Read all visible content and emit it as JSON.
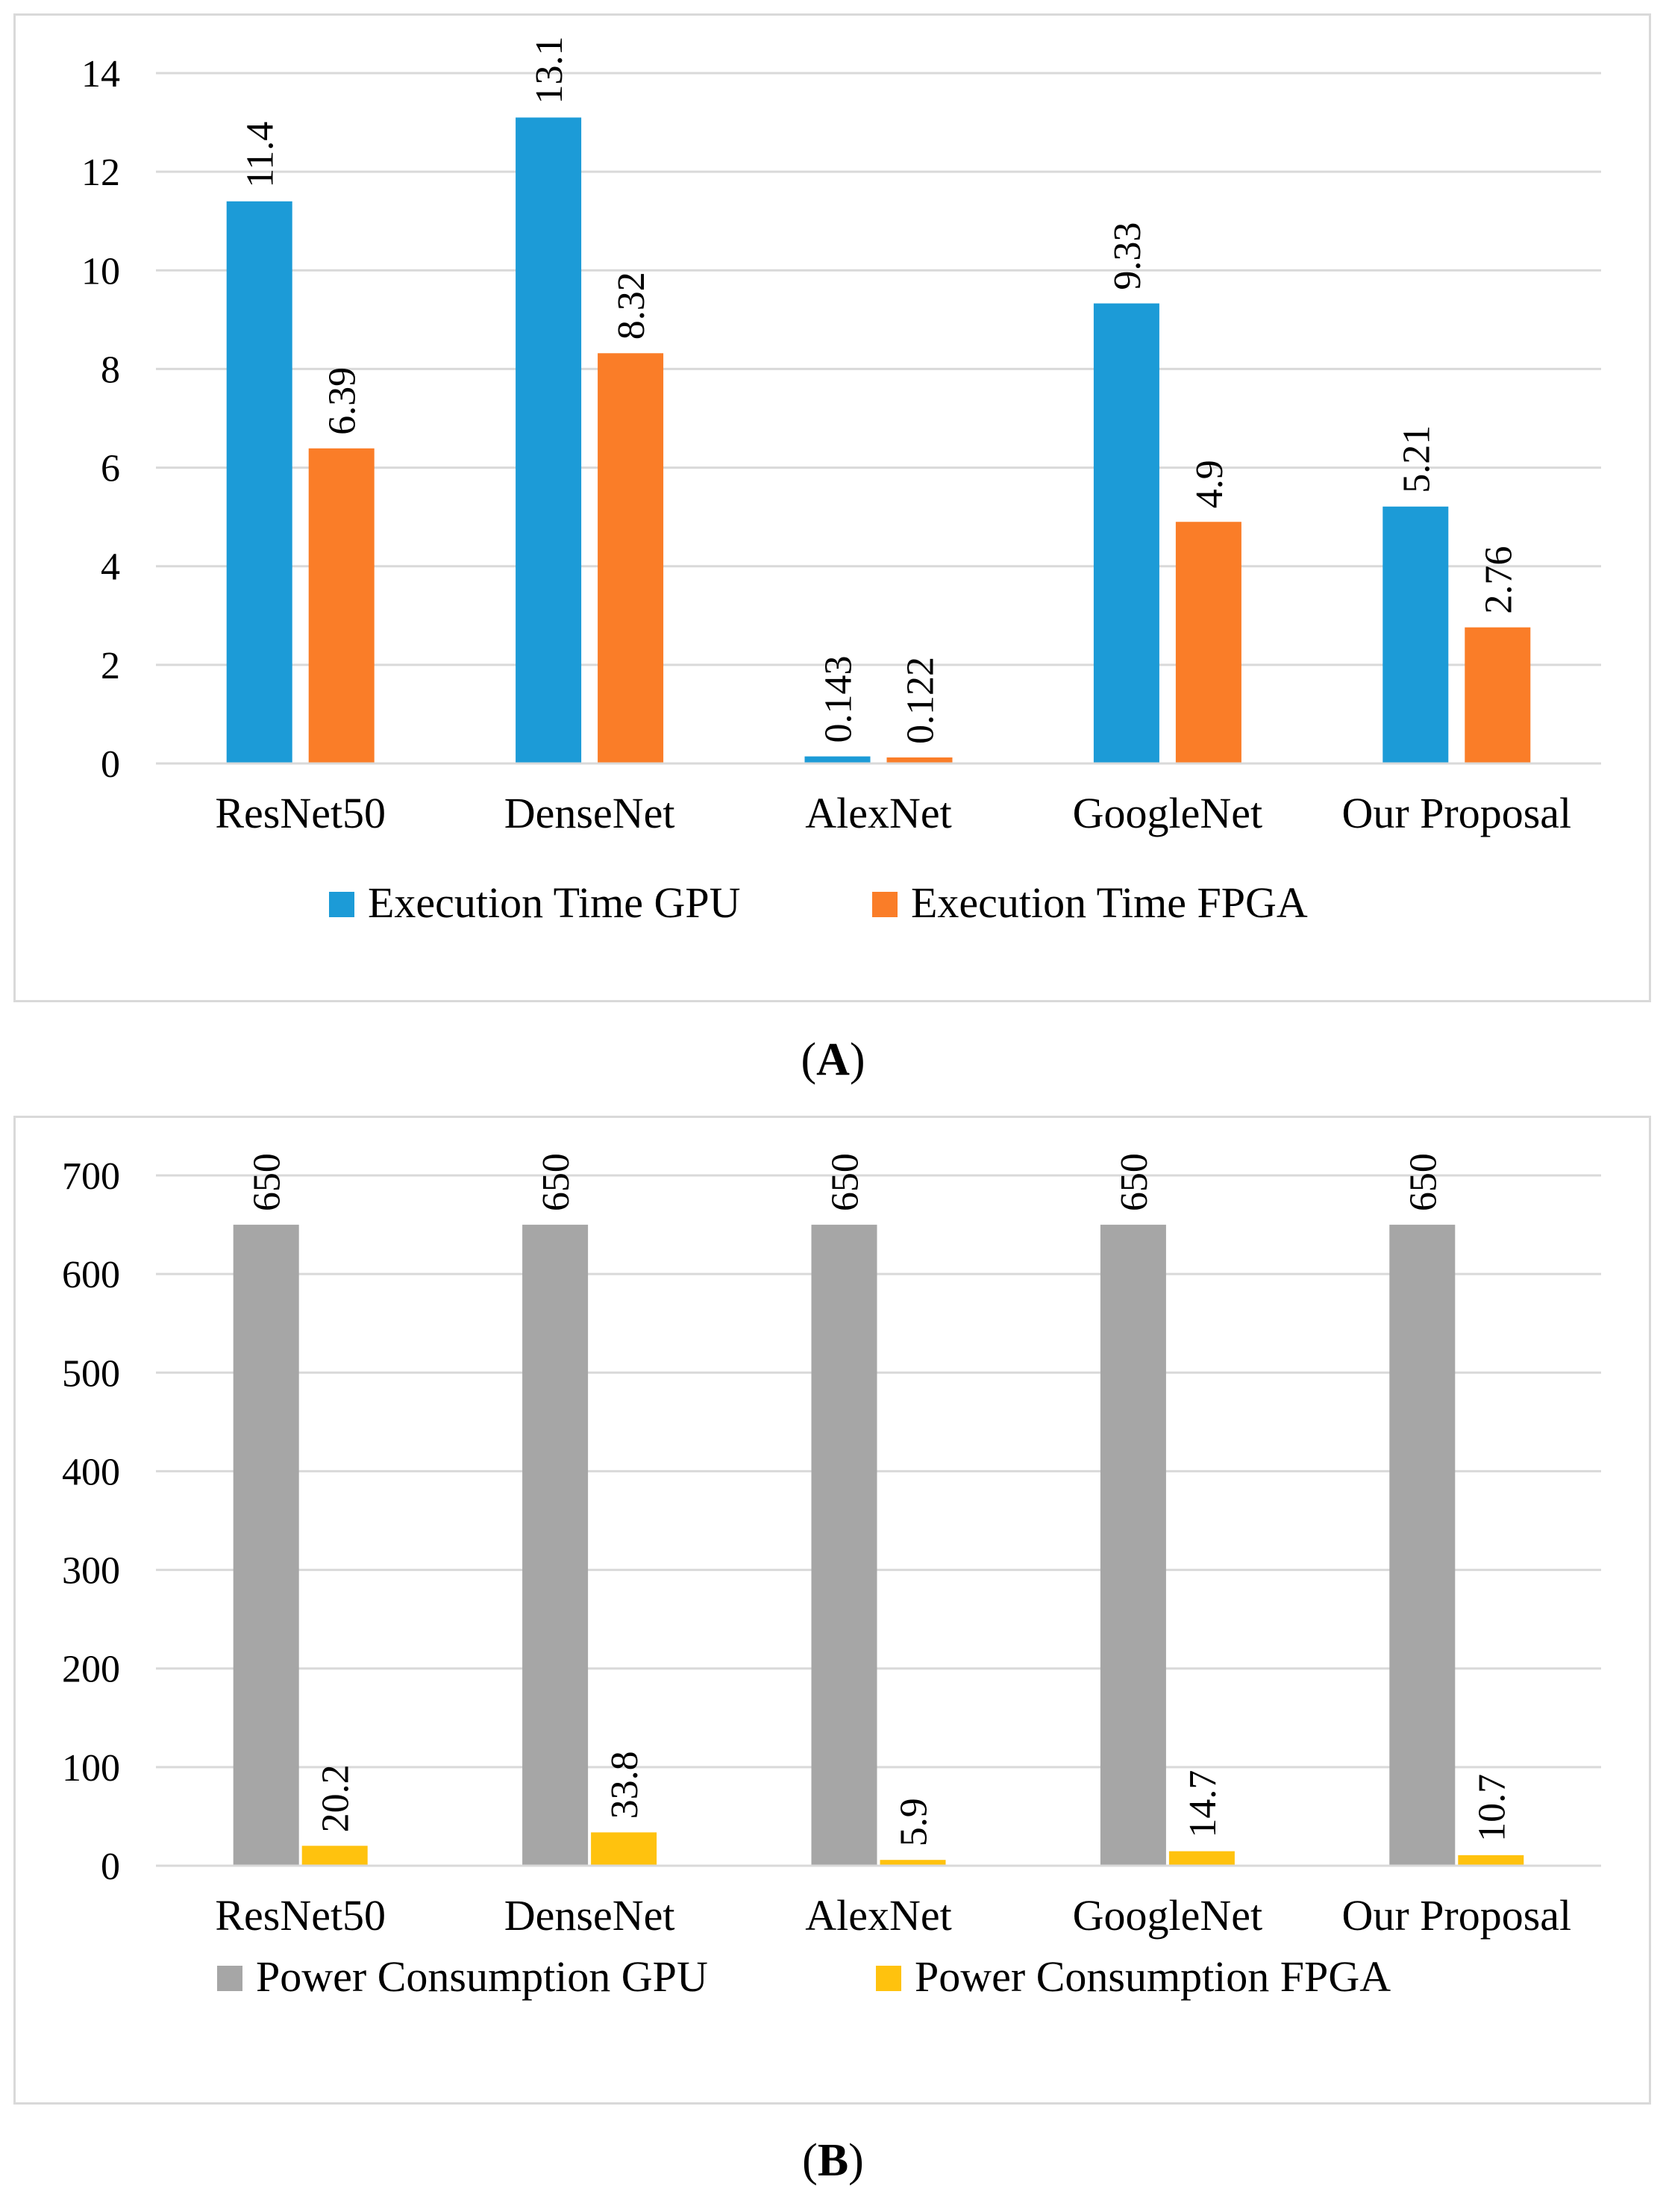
{
  "figure": {
    "caption_a": {
      "open": "(",
      "letter": "A",
      "close": ")"
    },
    "caption_b": {
      "open": "(",
      "letter": "B",
      "close": ")"
    }
  },
  "chart_data": [
    {
      "id": "A",
      "type": "bar",
      "title": "",
      "xlabel": "",
      "ylabel": "",
      "categories": [
        "ResNet50",
        "DenseNet",
        "AlexNet",
        "GoogleNet",
        "Our Proposal"
      ],
      "series": [
        {
          "name": "Execution Time GPU",
          "color": "#1c9bd7",
          "values": [
            11.4,
            13.1,
            0.143,
            9.33,
            5.21
          ],
          "labels": [
            "11.4",
            "13.1",
            "0.143",
            "9.33",
            "5.21"
          ]
        },
        {
          "name": "Execution Time FPGA",
          "color": "#fa7d28",
          "values": [
            6.39,
            8.32,
            0.122,
            4.9,
            2.76
          ],
          "labels": [
            "6.39",
            "8.32",
            "0.122",
            "4.9",
            "2.76"
          ]
        }
      ],
      "ylim": [
        0,
        14
      ],
      "yticks": [
        0,
        2,
        4,
        6,
        8,
        10,
        12,
        14
      ],
      "grid": true,
      "legend": "bottom"
    },
    {
      "id": "B",
      "type": "bar",
      "title": "",
      "xlabel": "",
      "ylabel": "",
      "categories": [
        "ResNet50",
        "DenseNet",
        "AlexNet",
        "GoogleNet",
        "Our Proposal"
      ],
      "series": [
        {
          "name": "Power Consumption GPU",
          "color": "#a6a6a6",
          "values": [
            650,
            650,
            650,
            650,
            650
          ],
          "labels": [
            "650",
            "650",
            "650",
            "650",
            "650"
          ]
        },
        {
          "name": "Power Consumption FPGA",
          "color": "#ffc20e",
          "values": [
            20.2,
            33.8,
            5.9,
            14.7,
            10.7
          ],
          "labels": [
            "20.2",
            "33.8",
            "5.9",
            "14.7",
            "10.7"
          ]
        }
      ],
      "ylim": [
        0,
        700
      ],
      "yticks": [
        0,
        100,
        200,
        300,
        400,
        500,
        600,
        700
      ],
      "grid": true,
      "legend": "bottom"
    }
  ]
}
